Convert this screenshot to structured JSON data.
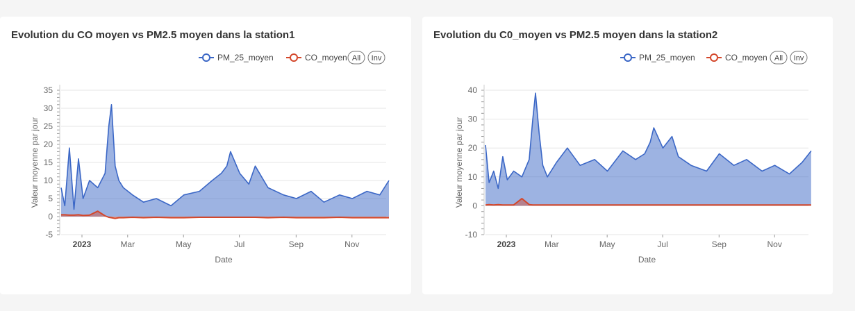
{
  "chart_data": [
    {
      "type": "area",
      "title": "Evolution du CO moyen vs PM2.5 moyen dans la station1",
      "xlabel": "Date",
      "ylabel": "Valeur moyenne par jour",
      "ylim": [
        -5,
        35
      ],
      "yticks": [
        "35",
        "30",
        "25",
        "20",
        "15",
        "10",
        "5",
        "0",
        "-5"
      ],
      "xticks": [
        "2023",
        "Mar",
        "May",
        "Jul",
        "Sep",
        "Nov"
      ],
      "legend_buttons": [
        "All",
        "Inv"
      ],
      "legend_position": "top-right",
      "grid": true,
      "x": [
        "2023-01-01",
        "2023-01-05",
        "2023-01-10",
        "2023-01-15",
        "2023-01-20",
        "2023-01-25",
        "2023-02-01",
        "2023-02-10",
        "2023-02-18",
        "2023-02-22",
        "2023-02-25",
        "2023-03-01",
        "2023-03-05",
        "2023-03-10",
        "2023-03-20",
        "2023-04-01",
        "2023-04-15",
        "2023-05-01",
        "2023-05-15",
        "2023-06-01",
        "2023-06-15",
        "2023-06-25",
        "2023-07-01",
        "2023-07-05",
        "2023-07-15",
        "2023-07-25",
        "2023-08-01",
        "2023-08-15",
        "2023-09-01",
        "2023-09-15",
        "2023-10-01",
        "2023-10-15",
        "2023-11-01",
        "2023-11-15",
        "2023-12-01",
        "2023-12-15",
        "2023-12-25"
      ],
      "series": [
        {
          "name": "PM_25_moyen",
          "color": "#3b67c6",
          "values": [
            8,
            3,
            19,
            2,
            16,
            5,
            10,
            8,
            12,
            25,
            31,
            14,
            10,
            8,
            6,
            4,
            5,
            3,
            6,
            7,
            10,
            12,
            14,
            18,
            12,
            9,
            14,
            8,
            6,
            5,
            7,
            4,
            6,
            5,
            7,
            6,
            10
          ]
        },
        {
          "name": "CO_moyen",
          "color": "#d4472b",
          "values": [
            0.5,
            0.5,
            0.4,
            0.4,
            0.5,
            0.3,
            0.4,
            1.5,
            0.2,
            -0.2,
            -0.3,
            -0.5,
            -0.3,
            -0.3,
            -0.2,
            -0.3,
            -0.2,
            -0.3,
            -0.3,
            -0.2,
            -0.2,
            -0.2,
            -0.2,
            -0.2,
            -0.2,
            -0.2,
            -0.2,
            -0.3,
            -0.2,
            -0.3,
            -0.3,
            -0.3,
            -0.2,
            -0.3,
            -0.3,
            -0.3,
            -0.3
          ]
        }
      ]
    },
    {
      "type": "area",
      "title": "Evolution du C0_moyen vs PM2.5 moyen dans la station2",
      "xlabel": "Date",
      "ylabel": "Valeur moyenne par jour",
      "ylim": [
        -10,
        40
      ],
      "yticks": [
        "40",
        "30",
        "20",
        "10",
        "0",
        "-10"
      ],
      "xticks": [
        "2023",
        "Mar",
        "May",
        "Jul",
        "Sep",
        "Nov"
      ],
      "legend_buttons": [
        "All",
        "Inv"
      ],
      "legend_position": "top-right",
      "grid": true,
      "x": [
        "2023-01-01",
        "2023-01-05",
        "2023-01-10",
        "2023-01-15",
        "2023-01-20",
        "2023-01-25",
        "2023-02-01",
        "2023-02-10",
        "2023-02-18",
        "2023-02-22",
        "2023-02-25",
        "2023-03-01",
        "2023-03-05",
        "2023-03-10",
        "2023-03-20",
        "2023-04-01",
        "2023-04-15",
        "2023-05-01",
        "2023-05-15",
        "2023-06-01",
        "2023-06-15",
        "2023-06-25",
        "2023-07-01",
        "2023-07-05",
        "2023-07-15",
        "2023-07-25",
        "2023-08-01",
        "2023-08-15",
        "2023-09-01",
        "2023-09-15",
        "2023-10-01",
        "2023-10-15",
        "2023-11-01",
        "2023-11-15",
        "2023-12-01",
        "2023-12-15",
        "2023-12-25"
      ],
      "series": [
        {
          "name": "PM_25_moyen",
          "color": "#3b67c6",
          "values": [
            21,
            8,
            12,
            6,
            17,
            9,
            12,
            10,
            16,
            30,
            39,
            25,
            14,
            10,
            15,
            20,
            14,
            16,
            12,
            19,
            16,
            18,
            22,
            27,
            20,
            24,
            17,
            14,
            12,
            18,
            14,
            16,
            12,
            14,
            11,
            15,
            19
          ]
        },
        {
          "name": "CO_moyen",
          "color": "#d4472b",
          "values": [
            0.3,
            0.4,
            0.3,
            0.4,
            0.3,
            0.3,
            0.3,
            2.5,
            0.4,
            0.3,
            0.3,
            0.3,
            0.3,
            0.3,
            0.3,
            0.3,
            0.3,
            0.3,
            0.3,
            0.3,
            0.3,
            0.3,
            0.3,
            0.3,
            0.3,
            0.3,
            0.3,
            0.3,
            0.3,
            0.3,
            0.3,
            0.3,
            0.3,
            0.3,
            0.3,
            0.3,
            0.3
          ]
        }
      ]
    }
  ]
}
